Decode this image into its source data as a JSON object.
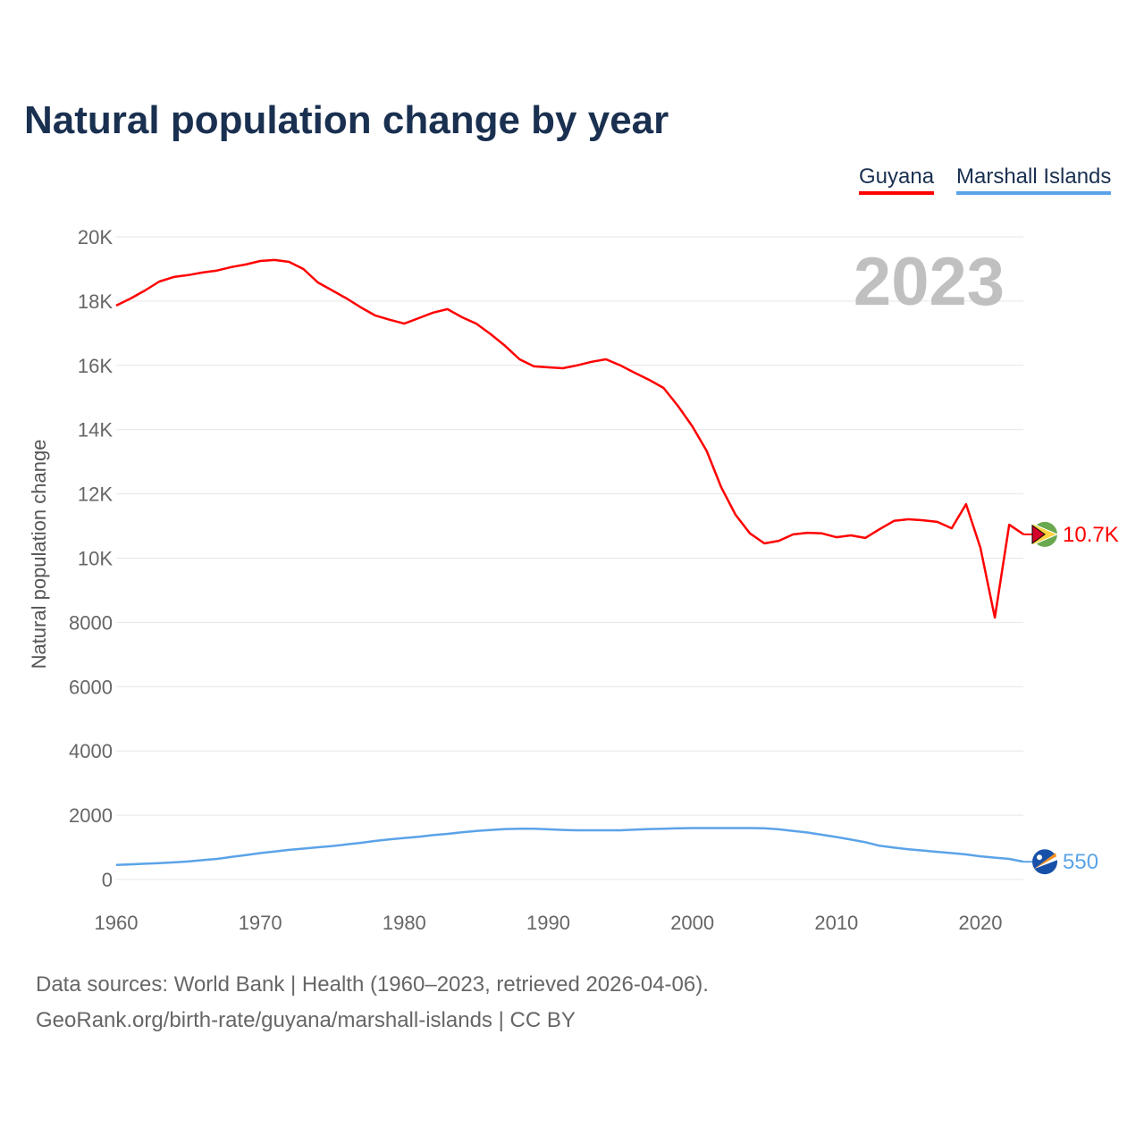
{
  "chart_data": {
    "type": "line",
    "title": "Natural population change by year",
    "ylabel": "Natural population change",
    "xlabel": "",
    "year_label": "2023",
    "xlim": [
      1960,
      2023
    ],
    "ylim": [
      0,
      20000
    ],
    "x_ticks": [
      "1960",
      "1970",
      "1980",
      "1990",
      "2000",
      "2010",
      "2020"
    ],
    "y_ticks": [
      {
        "v": 0,
        "label": "0"
      },
      {
        "v": 2000,
        "label": "2000"
      },
      {
        "v": 4000,
        "label": "4000"
      },
      {
        "v": 6000,
        "label": "6000"
      },
      {
        "v": 8000,
        "label": "8000"
      },
      {
        "v": 10000,
        "label": "10K"
      },
      {
        "v": 12000,
        "label": "12K"
      },
      {
        "v": 14000,
        "label": "14K"
      },
      {
        "v": 16000,
        "label": "16K"
      },
      {
        "v": 18000,
        "label": "18K"
      },
      {
        "v": 20000,
        "label": "20K"
      }
    ],
    "grid": true,
    "legend_position": "top-right",
    "series": [
      {
        "name": "Guyana",
        "color": "#ff0000",
        "end_label": "10.7K",
        "icon": "guyana-flag-icon",
        "values": [
          17860,
          18080,
          18330,
          18610,
          18750,
          18810,
          18890,
          18950,
          19060,
          19140,
          19250,
          19280,
          19220,
          19000,
          18580,
          18330,
          18080,
          17800,
          17550,
          17420,
          17300,
          17470,
          17640,
          17750,
          17500,
          17300,
          16970,
          16610,
          16190,
          15970,
          15940,
          15910,
          16000,
          16110,
          16190,
          16000,
          15770,
          15550,
          15300,
          14740,
          14100,
          13330,
          12210,
          11350,
          10770,
          10460,
          10540,
          10740,
          10790,
          10770,
          10650,
          10710,
          10630,
          10900,
          11160,
          11210,
          11180,
          11130,
          10930,
          11680,
          10320,
          8150,
          11040,
          10740
        ]
      },
      {
        "name": "Marshall Islands",
        "color": "#5ba3e8",
        "end_label": "550",
        "icon": "marshall-islands-flag-icon",
        "values": [
          450,
          470,
          490,
          510,
          530,
          560,
          600,
          640,
          700,
          760,
          820,
          870,
          920,
          960,
          1000,
          1040,
          1090,
          1140,
          1200,
          1250,
          1290,
          1330,
          1380,
          1420,
          1470,
          1510,
          1540,
          1570,
          1580,
          1580,
          1560,
          1540,
          1530,
          1530,
          1530,
          1530,
          1550,
          1570,
          1580,
          1590,
          1600,
          1600,
          1600,
          1600,
          1600,
          1590,
          1560,
          1510,
          1460,
          1390,
          1320,
          1240,
          1160,
          1050,
          990,
          940,
          900,
          860,
          820,
          780,
          720,
          680,
          640,
          550
        ]
      }
    ]
  },
  "footer": {
    "line1": "Data sources: World Bank | Health (1960–2023, retrieved 2026-04-06).",
    "line2": "GeoRank.org/birth-rate/guyana/marshall-islands | CC BY"
  }
}
